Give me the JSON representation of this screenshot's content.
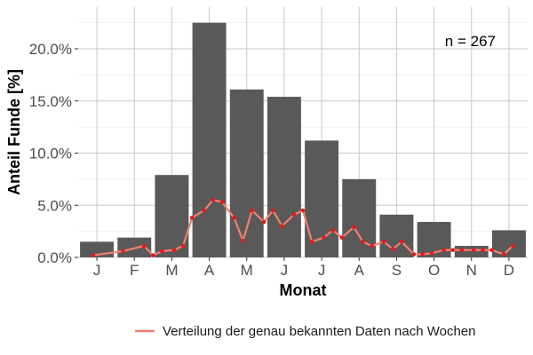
{
  "chart_data": {
    "type": "bar",
    "title": "",
    "xlabel": "Monat",
    "ylabel": "Anteil Funde [%]",
    "annotation": "n = 267",
    "categories": [
      "J",
      "F",
      "M",
      "A",
      "M",
      "J",
      "J",
      "A",
      "S",
      "O",
      "N",
      "D"
    ],
    "values": [
      1.5,
      1.9,
      7.9,
      22.5,
      16.1,
      15.4,
      11.2,
      7.5,
      4.1,
      3.4,
      1.1,
      2.6
    ],
    "ylim": [
      0,
      24
    ],
    "yticks": [
      0,
      5,
      10,
      15,
      20
    ],
    "ytick_labels": [
      "0.0%",
      "5.0%",
      "10.0%",
      "15.0%",
      "20.0%"
    ],
    "grid": true,
    "legend_position": "bottom",
    "bar_color": "#595959",
    "series": [
      {
        "name": "Verteilung der genau bekannten Daten nach Wochen",
        "type": "line",
        "color": "#f08070",
        "marker_color": "#e41a1c",
        "x": [
          0.5,
          1.5,
          2.2,
          2.5,
          2.8,
          3.2,
          3.5,
          3.8,
          4.2,
          4.5,
          4.8,
          5.2,
          5.5,
          5.8,
          6.2,
          6.5,
          6.8,
          7.2,
          7.5,
          7.8,
          8.2,
          8.5,
          8.8,
          9.2,
          9.5,
          9.8,
          10.2,
          10.5,
          10.8,
          11.2,
          11.5,
          11.8,
          12.2,
          12.5,
          12.8,
          13.2,
          13.5,
          13.8,
          14.2,
          14.5
        ],
        "y": [
          0.2,
          0.6,
          1.1,
          0.2,
          0.6,
          0.7,
          1.1,
          3.8,
          4.5,
          5.5,
          5.3,
          3.8,
          1.6,
          4.5,
          3.4,
          4.5,
          3.0,
          4.1,
          4.5,
          1.5,
          1.9,
          2.6,
          1.9,
          2.9,
          1.5,
          1.1,
          1.5,
          0.8,
          1.5,
          0.3,
          0.3,
          0.4,
          0.7,
          0.7,
          0.7,
          0.7,
          0.7,
          0.7,
          0.3,
          1.1
        ]
      }
    ]
  }
}
